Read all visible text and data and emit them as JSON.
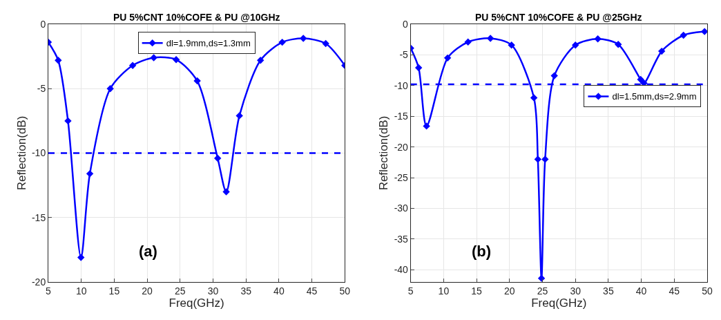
{
  "chart_data": [
    {
      "type": "line",
      "title": "PU 5%CNT 10%COFE & PU @10GHz",
      "xlabel": "Freq(GHz)",
      "ylabel": "Reflection(dB)",
      "xlim": [
        5,
        50
      ],
      "xticks": [
        5,
        10,
        15,
        20,
        25,
        30,
        35,
        40,
        45,
        50
      ],
      "ylim": [
        -20,
        0
      ],
      "yticks": [
        -20,
        -15,
        -10,
        -5,
        0
      ],
      "grid": true,
      "legend": "top",
      "marker": "diamond",
      "line_style": "solid",
      "series": [
        {
          "name": "dl=1.9mm,ds=1.3mm",
          "color": "#0000ff",
          "x": [
            5,
            6.5,
            7.98,
            9.95,
            11.3,
            14.4,
            17.8,
            21.0,
            24.4,
            27.6,
            30.7,
            32.0,
            34.0,
            37.2,
            40.5,
            43.7,
            47.1,
            50
          ],
          "values": [
            -1.4,
            -2.8,
            -7.5,
            -18.1,
            -11.6,
            -5.0,
            -3.2,
            -2.6,
            -2.75,
            -4.4,
            -10.4,
            -13.0,
            -7.1,
            -2.8,
            -1.4,
            -1.1,
            -1.5,
            -3.2
          ]
        }
      ],
      "ref_lines": [
        {
          "axis": "y",
          "value": -10,
          "color": "#0000ff",
          "line_style": "dashed"
        }
      ],
      "annotations": [
        "(a)"
      ]
    },
    {
      "type": "line",
      "title": "PU 5%CNT 10%COFE & PU @25GHz",
      "xlabel": "Freq(GHz)",
      "ylabel": "Reflection(dB)",
      "xlim": [
        5,
        50
      ],
      "xticks": [
        5,
        10,
        15,
        20,
        25,
        30,
        35,
        40,
        45,
        50
      ],
      "ylim": [
        -42,
        0
      ],
      "yticks": [
        -40,
        -35,
        -30,
        -25,
        -20,
        -15,
        -10,
        -5,
        0
      ],
      "grid": true,
      "legend": "right",
      "marker": "diamond",
      "line_style": "solid",
      "series": [
        {
          "name": "dl=1.5mm,ds=2.9mm",
          "color": "#0000ff",
          "x": [
            5,
            6.2,
            7.4,
            10.6,
            13.7,
            17.1,
            20.3,
            23.7,
            24.3,
            24.85,
            25.4,
            26.8,
            30.0,
            33.4,
            36.5,
            39.9,
            40.4,
            43.1,
            46.4,
            49.6
          ],
          "values": [
            -3.9,
            -7.1,
            -16.6,
            -5.5,
            -2.9,
            -2.3,
            -3.4,
            -12.0,
            -22.0,
            -41.4,
            -22.0,
            -8.4,
            -3.4,
            -2.4,
            -3.3,
            -9.0,
            -9.6,
            -4.4,
            -1.8,
            -1.2
          ]
        }
      ],
      "ref_lines": [
        {
          "axis": "y",
          "value": -9.8,
          "color": "#0000ff",
          "line_style": "dashed"
        }
      ],
      "annotations": [
        "(b)"
      ]
    }
  ]
}
